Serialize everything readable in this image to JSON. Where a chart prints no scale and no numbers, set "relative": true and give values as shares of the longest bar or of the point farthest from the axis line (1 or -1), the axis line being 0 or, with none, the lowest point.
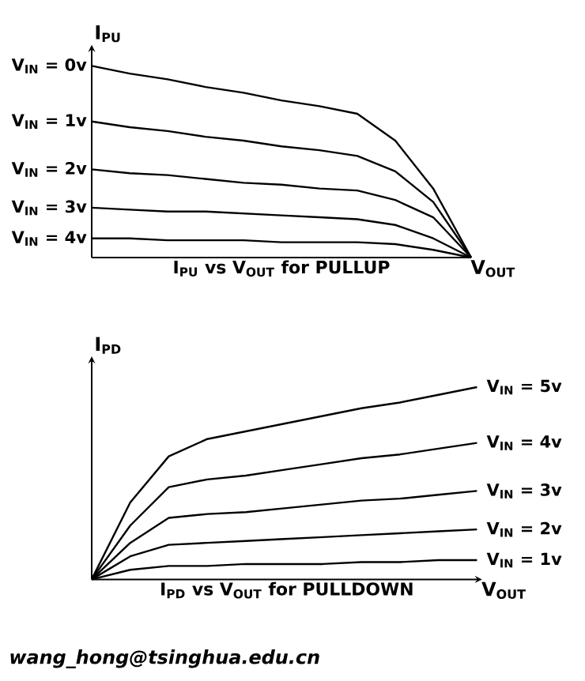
{
  "chart_data": [
    {
      "type": "line",
      "title": "I$_{PU}$ vs V$_{OUT}$ for PULLUP",
      "xlabel": "V$_{OUT}$",
      "ylabel": "I$_{PU}$",
      "relative": true,
      "marker": "none",
      "categories": [
        null,
        null,
        null,
        null,
        null,
        null,
        null,
        null,
        null,
        null,
        null
      ],
      "series": [
        {
          "name": "V$_{IN}$ = 0v",
          "color": "#000000",
          "values": [
            1.0,
            0.96,
            0.93,
            0.89,
            0.86,
            0.82,
            0.79,
            0.75,
            0.61,
            0.36,
            0
          ]
        },
        {
          "name": "V$_{IN}$ = 1v",
          "color": "#000000",
          "values": [
            0.71,
            0.68,
            0.66,
            0.63,
            0.61,
            0.58,
            0.56,
            0.53,
            0.45,
            0.29,
            0
          ]
        },
        {
          "name": "V$_{IN}$ = 2v",
          "color": "#000000",
          "values": [
            0.46,
            0.44,
            0.43,
            0.41,
            0.39,
            0.38,
            0.36,
            0.35,
            0.3,
            0.21,
            0
          ]
        },
        {
          "name": "V$_{IN}$ = 3v",
          "color": "#000000",
          "values": [
            0.26,
            0.25,
            0.24,
            0.24,
            0.23,
            0.22,
            0.21,
            0.2,
            0.17,
            0.1,
            0
          ]
        },
        {
          "name": "V$_{IN}$ = 4v",
          "color": "#000000",
          "values": [
            0.1,
            0.1,
            0.09,
            0.09,
            0.09,
            0.08,
            0.08,
            0.08,
            0.07,
            0.04,
            0
          ]
        }
      ]
    },
    {
      "type": "line",
      "title": "I$_{PD}$ vs V$_{OUT}$ for PULLDOWN",
      "xlabel": "V$_{OUT}$",
      "ylabel": "I$_{PD}$",
      "relative": true,
      "marker": "none",
      "categories": [
        null,
        null,
        null,
        null,
        null,
        null,
        null,
        null,
        null,
        null,
        null
      ],
      "annotations": [
        "wang_hong@tsinghua.edu.cn"
      ],
      "series": [
        {
          "name": "V$_{IN}$ = 5v",
          "color": "#000000",
          "values": [
            0,
            0.4,
            0.64,
            0.73,
            0.77,
            0.81,
            0.85,
            0.89,
            0.92,
            0.96,
            1.0
          ]
        },
        {
          "name": "V$_{IN}$ = 4v",
          "color": "#000000",
          "values": [
            0,
            0.28,
            0.48,
            0.52,
            0.54,
            0.57,
            0.6,
            0.63,
            0.65,
            0.68,
            0.71
          ]
        },
        {
          "name": "V$_{IN}$ = 3v",
          "color": "#000000",
          "values": [
            0,
            0.19,
            0.32,
            0.34,
            0.35,
            0.37,
            0.39,
            0.41,
            0.42,
            0.44,
            0.46
          ]
        },
        {
          "name": "V$_{IN}$ = 2v",
          "color": "#000000",
          "values": [
            0,
            0.12,
            0.18,
            0.19,
            0.2,
            0.21,
            0.22,
            0.23,
            0.24,
            0.25,
            0.26
          ]
        },
        {
          "name": "V$_{IN}$ = 1v",
          "color": "#000000",
          "values": [
            0,
            0.05,
            0.07,
            0.07,
            0.08,
            0.08,
            0.08,
            0.09,
            0.09,
            0.1,
            0.1
          ]
        }
      ]
    }
  ]
}
